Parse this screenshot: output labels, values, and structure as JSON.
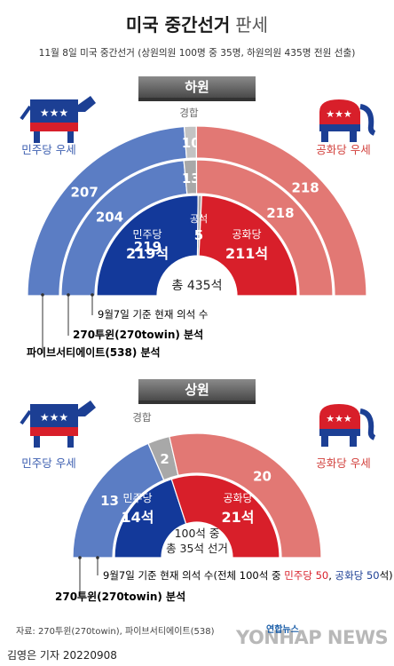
{
  "title": {
    "main": "미국 중간선거",
    "suffix": "판세"
  },
  "subtitle": "11월 8일 미국 중간선거 (상원의원 100명 중 35명, 하원의원 435명 전원 선출)",
  "colors": {
    "dem_light": "#5b7dc4",
    "dem_dark": "#13399a",
    "rep_light": "#e27874",
    "rep_dark": "#d81f2a",
    "tossup": "#a8a8a8",
    "tossup_light": "#c3c3c3"
  },
  "icons": {
    "dem": "donkey-icon",
    "rep": "elephant-icon"
  },
  "house": {
    "label": "하원",
    "dem_side_label": "민주당 우세",
    "rep_side_label": "공화당 우세",
    "tossup_label": "경합",
    "inner_dem_party": "민주당",
    "inner_dem_seats": "219석",
    "inner_rep_party": "공화당",
    "inner_rep_seats": "211석",
    "inner_vacant_label": "공석",
    "total_label": "총 435석",
    "caption_current": "9월7일 기준 현재 의석 수",
    "caption_270": "270투윈(270towin) 분석",
    "caption_538": "파이브서티에이트(538) 분석"
  },
  "senate": {
    "label": "상원",
    "dem_side_label": "민주당 우세",
    "rep_side_label": "공화당 우세",
    "tossup_label": "경합",
    "inner_dem_party": "민주당",
    "inner_dem_seats": "14석",
    "inner_rep_party": "공화당",
    "inner_rep_seats": "21석",
    "total_line1": "100석 중",
    "total_line2": "총 35석 선거",
    "caption_current_prefix": "9월7일 기준 현재 의석 수(전체 100석 중 ",
    "caption_current_dem": "민주당 50",
    "caption_current_sep": ", ",
    "caption_current_rep": "공화당 50",
    "caption_current_suffix": "석)",
    "caption_270": "270투윈(270towin) 분석"
  },
  "chart_data": [
    {
      "type": "semicircle-donut",
      "title": "하원",
      "rings": [
        {
          "name": "파이브서티에이트(538) 분석",
          "categories": [
            "민주당 우세",
            "경합",
            "공화당 우세"
          ],
          "values": [
            207,
            10,
            218
          ]
        },
        {
          "name": "270투윈(270towin) 분석",
          "categories": [
            "민주당 우세",
            "경합",
            "공화당 우세"
          ],
          "values": [
            204,
            13,
            218
          ]
        },
        {
          "name": "9월7일 기준 현재 의석 수",
          "categories": [
            "민주당",
            "공석",
            "공화당"
          ],
          "values": [
            219,
            5,
            211
          ]
        }
      ],
      "total": 435
    },
    {
      "type": "semicircle-donut",
      "title": "상원",
      "rings": [
        {
          "name": "270투윈(270towin) 분석",
          "categories": [
            "민주당 우세",
            "경합",
            "공화당 우세"
          ],
          "values": [
            13,
            2,
            20
          ]
        },
        {
          "name": "9월7일 기준 현재 의석 수",
          "categories": [
            "민주당",
            "공화당"
          ],
          "values": [
            14,
            21
          ]
        }
      ],
      "total": 35
    }
  ],
  "footer": {
    "source": "자료: 270투윈(270towin), 파이브서티에이트(538)",
    "credit": "김영은 기자  20220908",
    "logo": "연합뉴스",
    "watermark": "YONHAP NEWS"
  }
}
